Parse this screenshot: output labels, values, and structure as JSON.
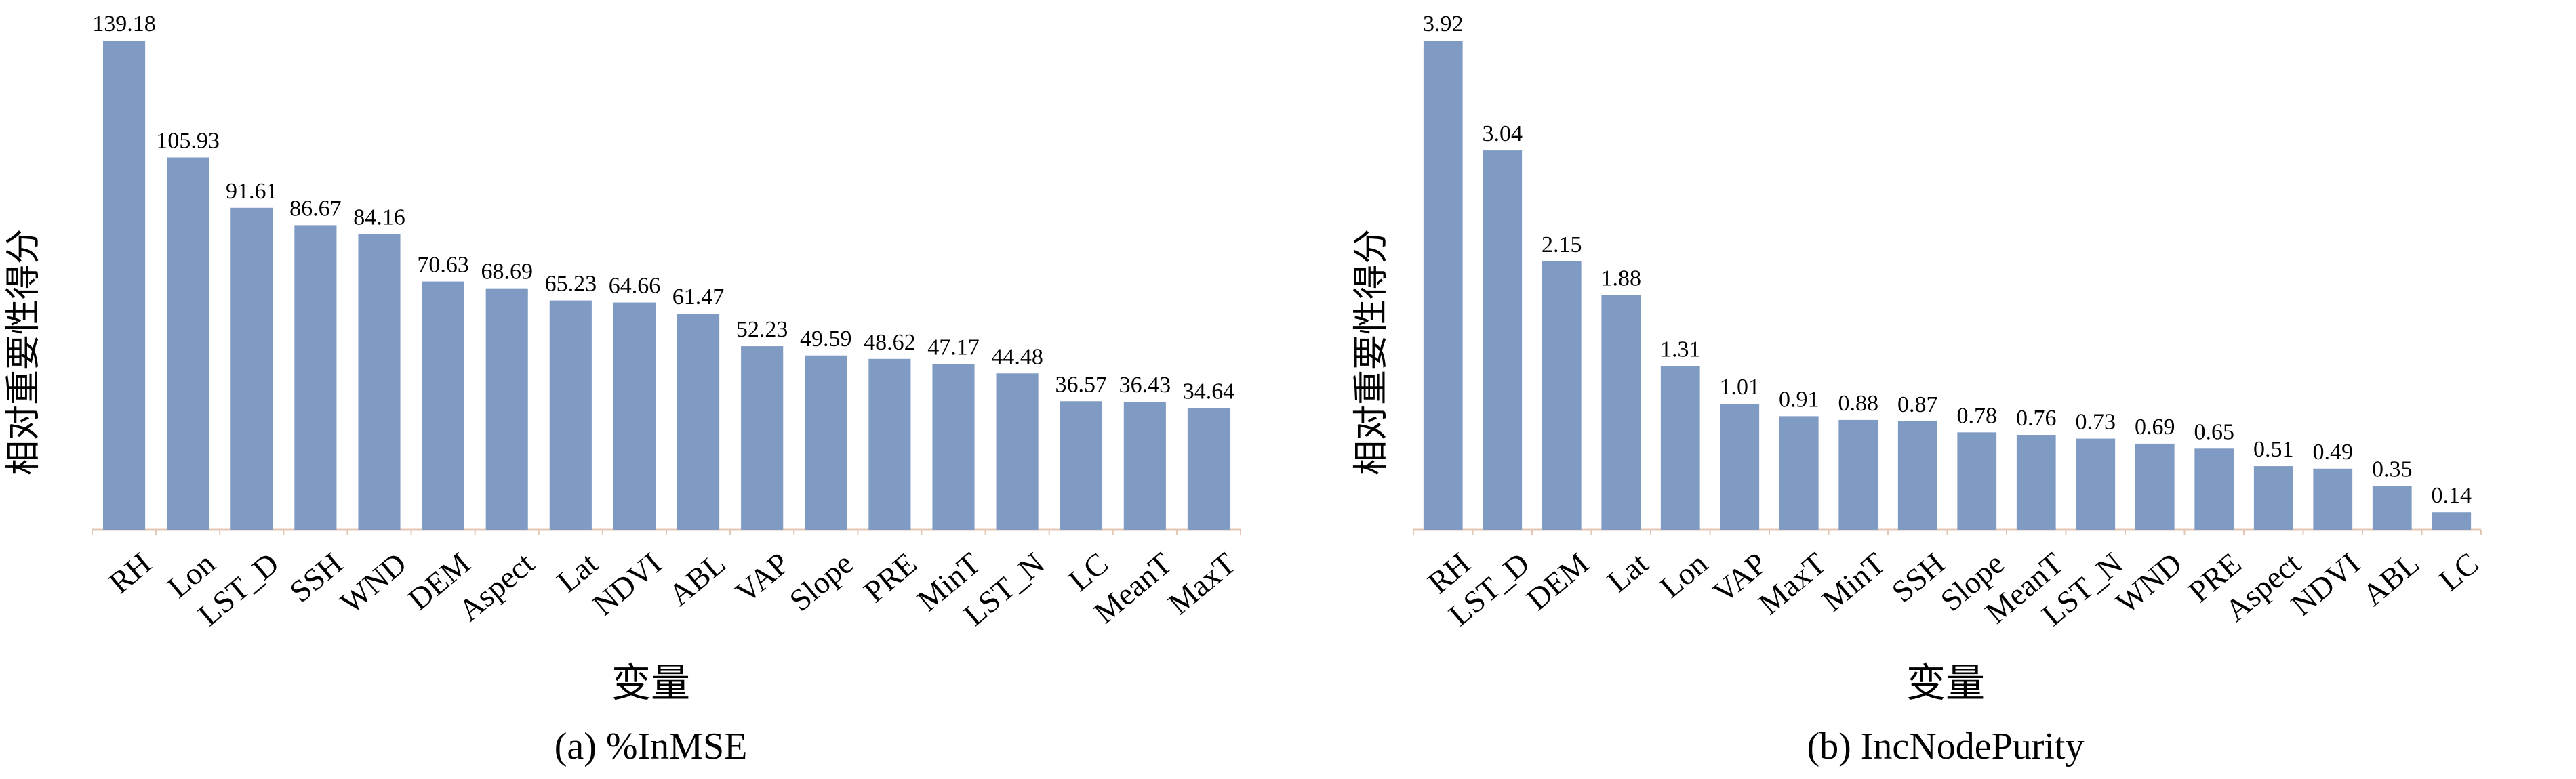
{
  "chart_data": [
    {
      "type": "bar",
      "title": "(a) %InMSE",
      "xlabel": "变量",
      "ylabel": "相对重要性得分",
      "ylim": [
        0,
        139.18
      ],
      "grid": false,
      "categories": [
        "RH",
        "Lon",
        "LST_D",
        "SSH",
        "WND",
        "DEM",
        "Aspect",
        "Lat",
        "NDVI",
        "ABL",
        "VAP",
        "Slope",
        "PRE",
        "MinT",
        "LST_N",
        "LC",
        "MeanT",
        "MaxT"
      ],
      "values": [
        139.18,
        105.93,
        91.61,
        86.67,
        84.16,
        70.63,
        68.69,
        65.23,
        64.66,
        61.47,
        52.23,
        49.59,
        48.62,
        47.17,
        44.48,
        36.57,
        36.43,
        34.64
      ],
      "value_labels": [
        "139.18",
        "105.93",
        "91.61",
        "86.67",
        "84.16",
        "70.63",
        "68.69",
        "65.23",
        "64.66",
        "61.47",
        "52.23",
        "49.59",
        "48.62",
        "47.17",
        "44.48",
        "36.57",
        "36.43",
        "34.64"
      ],
      "bar_color": "#7f9bc3",
      "axis_color": "#e3c6b4"
    },
    {
      "type": "bar",
      "title": "(b) IncNodePurity",
      "xlabel": "变量",
      "ylabel": "相对重要性得分",
      "ylim": [
        0,
        3.92
      ],
      "grid": false,
      "categories": [
        "RH",
        "LST_D",
        "DEM",
        "Lat",
        "Lon",
        "VAP",
        "MaxT",
        "MinT",
        "SSH",
        "Slope",
        "MeanT",
        "LST_N",
        "WND",
        "PRE",
        "Aspect",
        "NDVI",
        "ABL",
        "LC"
      ],
      "values": [
        3.92,
        3.04,
        2.15,
        1.88,
        1.31,
        1.01,
        0.91,
        0.88,
        0.87,
        0.78,
        0.76,
        0.73,
        0.69,
        0.65,
        0.51,
        0.49,
        0.35,
        0.14
      ],
      "value_labels": [
        "3.92",
        "3.04",
        "2.15",
        "1.88",
        "1.31",
        "1.01",
        "0.91",
        "0.88",
        "0.87",
        "0.78",
        "0.76",
        "0.73",
        "0.69",
        "0.65",
        "0.51",
        "0.49",
        "0.35",
        "0.14"
      ],
      "bar_color": "#7f9bc3",
      "axis_color": "#e3c6b4"
    }
  ]
}
